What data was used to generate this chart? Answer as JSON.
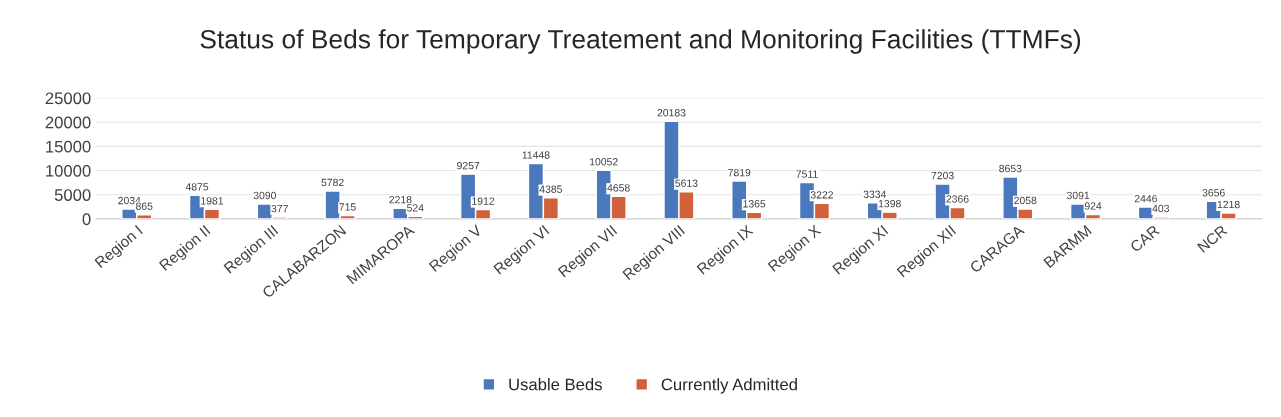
{
  "chart_data": {
    "type": "bar",
    "title": "Status of Beds for Temporary Treatement and Monitoring Facilities (TTMFs)",
    "categories": [
      "Region I",
      "Region II",
      "Region III",
      "CALABARZON",
      "MIMAROPA",
      "Region V",
      "Region VI",
      "Region VII",
      "Region VIII",
      "Region IX",
      "Region X",
      "Region XI",
      "Region XII",
      "CARAGA",
      "BARMM",
      "CAR",
      "NCR"
    ],
    "series": [
      {
        "name": "Usable Beds",
        "color": "#4a78bd",
        "values": [
          2034,
          4875,
          3090,
          5782,
          2218,
          9257,
          11448,
          10052,
          20183,
          7819,
          7511,
          3334,
          7203,
          8653,
          3091,
          2446,
          3656
        ]
      },
      {
        "name": "Currently Admitted",
        "color": "#d2603a",
        "values": [
          865,
          1981,
          377,
          715,
          524,
          1912,
          4385,
          4658,
          5613,
          1365,
          3222,
          1398,
          2366,
          2058,
          924,
          403,
          1218
        ]
      }
    ],
    "ylim": [
      0,
      25000
    ],
    "yticks": [
      0,
      5000,
      10000,
      15000,
      20000,
      25000
    ],
    "grid": "y",
    "legend": "bottom",
    "data_labels": true
  }
}
